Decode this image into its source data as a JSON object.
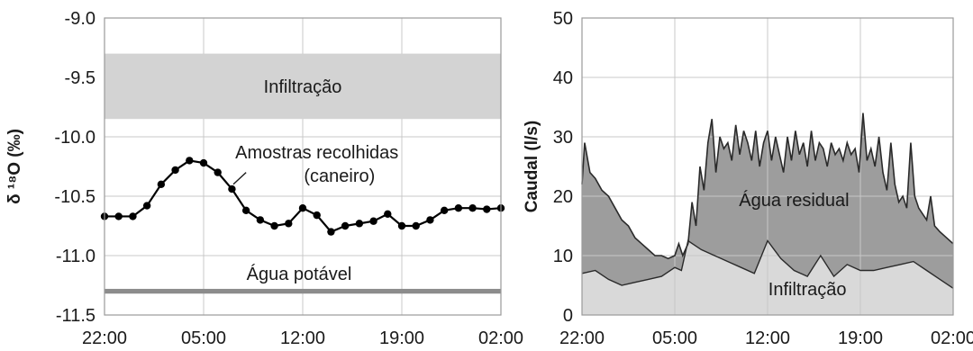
{
  "chart_data": [
    {
      "type": "line",
      "ylabel": "δ ¹⁸O (‰)",
      "ylim": [
        -11.5,
        -9.0
      ],
      "yticks": [
        -9.0,
        -9.5,
        -10.0,
        -10.5,
        -11.0,
        -11.5
      ],
      "ytick_labels": [
        "-9.0",
        "-9.5",
        "-10.0",
        "-10.5",
        "-11.0",
        "-11.5"
      ],
      "xlim": [
        0,
        28
      ],
      "xticks": [
        0,
        7,
        14,
        21,
        28
      ],
      "xtick_labels": [
        "22:00",
        "05:00",
        "12:00",
        "19:00",
        "02:00"
      ],
      "grid": true,
      "bands": [
        {
          "label": "Infiltração",
          "y_range": [
            -9.85,
            -9.3
          ],
          "color": "#d3d3d3"
        },
        {
          "label": "Água potável",
          "y_range": [
            -11.32,
            -11.28
          ],
          "color": "#8c8c8c"
        }
      ],
      "annotations": [
        {
          "text": "Amostras recolhidas",
          "x": 15,
          "y": -10.18
        },
        {
          "text": "(caneiro)",
          "x": 16.6,
          "y": -10.38
        }
      ],
      "series": [
        {
          "name": "Amostras recolhidas (caneiro)",
          "color": "#000000",
          "x": [
            0,
            1,
            2,
            3,
            4,
            5,
            6,
            7,
            8,
            9,
            10,
            11,
            12,
            13,
            14,
            15,
            16,
            17,
            18,
            19,
            20,
            21,
            22,
            23,
            24,
            25,
            26,
            27,
            28
          ],
          "y": [
            -10.67,
            -10.67,
            -10.67,
            -10.58,
            -10.4,
            -10.28,
            -10.2,
            -10.22,
            -10.3,
            -10.44,
            -10.62,
            -10.7,
            -10.75,
            -10.73,
            -10.6,
            -10.66,
            -10.8,
            -10.75,
            -10.73,
            -10.71,
            -10.65,
            -10.75,
            -10.75,
            -10.7,
            -10.62,
            -10.6,
            -10.6,
            -10.61,
            -10.6
          ]
        }
      ]
    },
    {
      "type": "area",
      "ylabel": "Caudal (l/s)",
      "ylim": [
        0,
        50
      ],
      "yticks": [
        0,
        10,
        20,
        30,
        40,
        50
      ],
      "ytick_labels": [
        "0",
        "10",
        "20",
        "30",
        "40",
        "50"
      ],
      "xlim": [
        0,
        28
      ],
      "xticks": [
        0,
        7,
        14,
        21,
        28
      ],
      "xtick_labels": [
        "22:00",
        "05:00",
        "12:00",
        "19:00",
        "02:00"
      ],
      "grid": true,
      "series": [
        {
          "name": "Água residual",
          "color": "#9d9d9d",
          "x": [
            0,
            0.2,
            0.6,
            1.0,
            1.5,
            2.0,
            2.5,
            3.0,
            3.5,
            4.0,
            4.5,
            5.0,
            5.5,
            6.0,
            6.5,
            7.0,
            7.3,
            7.6,
            8.0,
            8.3,
            8.6,
            8.9,
            9.2,
            9.5,
            9.8,
            10.1,
            10.4,
            10.7,
            11.0,
            11.3,
            11.6,
            11.9,
            12.2,
            12.5,
            12.8,
            13.1,
            13.4,
            13.7,
            14.0,
            14.3,
            14.6,
            14.9,
            15.2,
            15.5,
            15.8,
            16.1,
            16.4,
            16.7,
            17.0,
            17.3,
            17.6,
            17.9,
            18.2,
            18.5,
            18.8,
            19.1,
            19.4,
            19.7,
            20.0,
            20.3,
            20.6,
            20.9,
            21.2,
            21.5,
            21.8,
            22.1,
            22.4,
            22.7,
            23.0,
            23.3,
            23.6,
            23.9,
            24.2,
            24.5,
            24.8,
            25.1,
            25.4,
            25.7,
            26.0,
            26.3,
            26.6,
            27.0,
            27.5,
            28.0
          ],
          "y": [
            22,
            29,
            24,
            23,
            21,
            20,
            18,
            16,
            15,
            13,
            12,
            11,
            10,
            10,
            9.5,
            10,
            12,
            10,
            12,
            19,
            15,
            25,
            21,
            29,
            33,
            24,
            30,
            28,
            29,
            26,
            32,
            27,
            31,
            29,
            26,
            31,
            25,
            29,
            31,
            26,
            30,
            27,
            24,
            30,
            26,
            31,
            27,
            29,
            25,
            31,
            26,
            29,
            28,
            25,
            29,
            27,
            28,
            26,
            29,
            27,
            28,
            24,
            34,
            26,
            28,
            25,
            30,
            24,
            21,
            29,
            22,
            19,
            20,
            18,
            29,
            20,
            18,
            17,
            16,
            20,
            15,
            14,
            13,
            12
          ]
        },
        {
          "name": "Infiltração",
          "color": "#d9d9d9",
          "x": [
            0,
            1,
            2,
            3,
            4,
            5,
            6,
            7,
            7.5,
            8,
            9,
            10,
            11,
            12,
            13,
            14,
            14.5,
            15,
            16,
            17,
            18,
            19,
            20,
            21,
            22,
            23,
            24,
            25,
            26,
            27,
            28
          ],
          "y": [
            7,
            7.5,
            6,
            5,
            5.5,
            6,
            6.5,
            8,
            7.5,
            12.5,
            11,
            10,
            9,
            8,
            7,
            12.5,
            11,
            9.5,
            7.5,
            6.5,
            10,
            6.5,
            8.5,
            7.5,
            7.5,
            8,
            8.5,
            9,
            7.5,
            6,
            4.5
          ]
        }
      ]
    }
  ]
}
